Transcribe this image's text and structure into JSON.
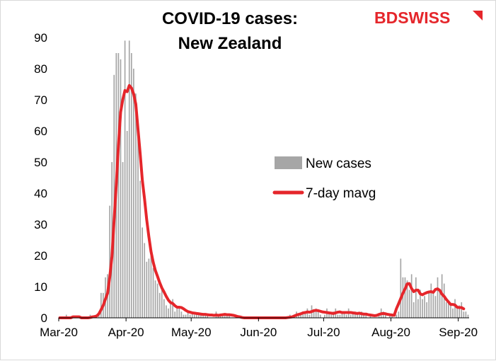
{
  "chart_data": {
    "type": "bar",
    "title_lines": [
      "COVID-19 cases:",
      "New Zealand"
    ],
    "xlabel": "",
    "ylabel": "",
    "ylim": [
      0,
      90
    ],
    "yticks": [
      0,
      10,
      20,
      30,
      40,
      50,
      60,
      70,
      80,
      90
    ],
    "xticks": [
      "Mar-20",
      "Apr-20",
      "May-20",
      "Jun-20",
      "Jul-20",
      "Aug-20",
      "Sep-20"
    ],
    "grid": false,
    "legend_position": "center-right",
    "logo": "BDSWISS",
    "start_date": "2020-03-01",
    "series": [
      {
        "name": "New cases",
        "type": "bar",
        "color": "#a6a6a6",
        "values": [
          0,
          0,
          0,
          1,
          0,
          0,
          0,
          0,
          0,
          0,
          0,
          0,
          0,
          0,
          1,
          0,
          0,
          1,
          2,
          8,
          8,
          13,
          14,
          36,
          50,
          78,
          85,
          85,
          83,
          50,
          89,
          60,
          89,
          85,
          80,
          72,
          58,
          44,
          29,
          24,
          18,
          19,
          20,
          16,
          12,
          11,
          8,
          9,
          6,
          4,
          3,
          5,
          6,
          2,
          3,
          3,
          2,
          1,
          1,
          2,
          1,
          2,
          1,
          1,
          1,
          1,
          1,
          1,
          1,
          0,
          0,
          0,
          2,
          1,
          1,
          1,
          1,
          1,
          1,
          0,
          0,
          0,
          0,
          0,
          0,
          0,
          0,
          0,
          0,
          0,
          0,
          0,
          0,
          0,
          0,
          0,
          0,
          0,
          0,
          0,
          0,
          0,
          0,
          0,
          0,
          0,
          1,
          0,
          1,
          2,
          1,
          1,
          2,
          2,
          3,
          1,
          4,
          2,
          3,
          2,
          1,
          0,
          1,
          3,
          2,
          1,
          2,
          3,
          1,
          1,
          2,
          2,
          1,
          3,
          1,
          2,
          2,
          1,
          1,
          2,
          1,
          1,
          0,
          1,
          0,
          0,
          0,
          1,
          3,
          2,
          1,
          0,
          1,
          1,
          0,
          1,
          2,
          19,
          13,
          13,
          12,
          9,
          14,
          5,
          13,
          6,
          9,
          6,
          7,
          5,
          8,
          11,
          8,
          7,
          13,
          9,
          14,
          11,
          5,
          5,
          4,
          3,
          6,
          3,
          4,
          5,
          2,
          2,
          1
        ]
      },
      {
        "name": "7-day mavg",
        "type": "line",
        "color": "#e5262b",
        "values": [
          0,
          0,
          0,
          0,
          0,
          0,
          0.3,
          0.3,
          0.3,
          0.3,
          0,
          0,
          0,
          0,
          0.1,
          0.3,
          0.4,
          0.6,
          1.3,
          2.6,
          4,
          6,
          7.9,
          13.1,
          19.6,
          31.4,
          42.7,
          55.4,
          66,
          70.1,
          73,
          72.6,
          74.6,
          73.8,
          71.9,
          68.6,
          60.6,
          52.8,
          44.2,
          38.3,
          31.6,
          26.1,
          21.3,
          17.9,
          15.2,
          13.3,
          11.3,
          9.6,
          8.3,
          6.9,
          5.7,
          4.9,
          4.6,
          3.9,
          3.4,
          3.4,
          3.3,
          2.9,
          2.4,
          2,
          1.8,
          1.6,
          1.5,
          1.4,
          1.3,
          1.2,
          1.1,
          1.1,
          1,
          0.9,
          0.9,
          0.8,
          0.9,
          0.8,
          0.9,
          1,
          1.1,
          1,
          1,
          0.9,
          0.8,
          0.6,
          0.4,
          0.3,
          0.1,
          0,
          0,
          0,
          0,
          0,
          0,
          0,
          0,
          0,
          0,
          0,
          0,
          0,
          0,
          0,
          0,
          0,
          0,
          0,
          0,
          0.1,
          0.2,
          0.3,
          0.6,
          0.9,
          1.1,
          1.3,
          1.6,
          1.7,
          1.9,
          1.8,
          2,
          2.3,
          2.4,
          2.3,
          2.1,
          1.9,
          1.8,
          1.7,
          1.6,
          1.5,
          1.4,
          1.6,
          1.8,
          1.9,
          1.7,
          1.7,
          1.7,
          1.7,
          1.7,
          1.6,
          1.5,
          1.4,
          1.5,
          1.3,
          1.2,
          1.2,
          1,
          0.9,
          0.8,
          0.7,
          0.8,
          1.1,
          1.3,
          1.4,
          1.3,
          1.1,
          1,
          0.9,
          0.8,
          2.9,
          4.5,
          6.2,
          7.9,
          9.3,
          10.9,
          11,
          9.4,
          8.4,
          8.9,
          8.9,
          7.7,
          7.4,
          7.8,
          8.1,
          8.3,
          8.4,
          8.2,
          9.1,
          9.3,
          8.8,
          7.6,
          6.9,
          5.9,
          5.1,
          4.3,
          4.3,
          4.1,
          3.4,
          3.3,
          3.3,
          2.9
        ]
      }
    ]
  }
}
